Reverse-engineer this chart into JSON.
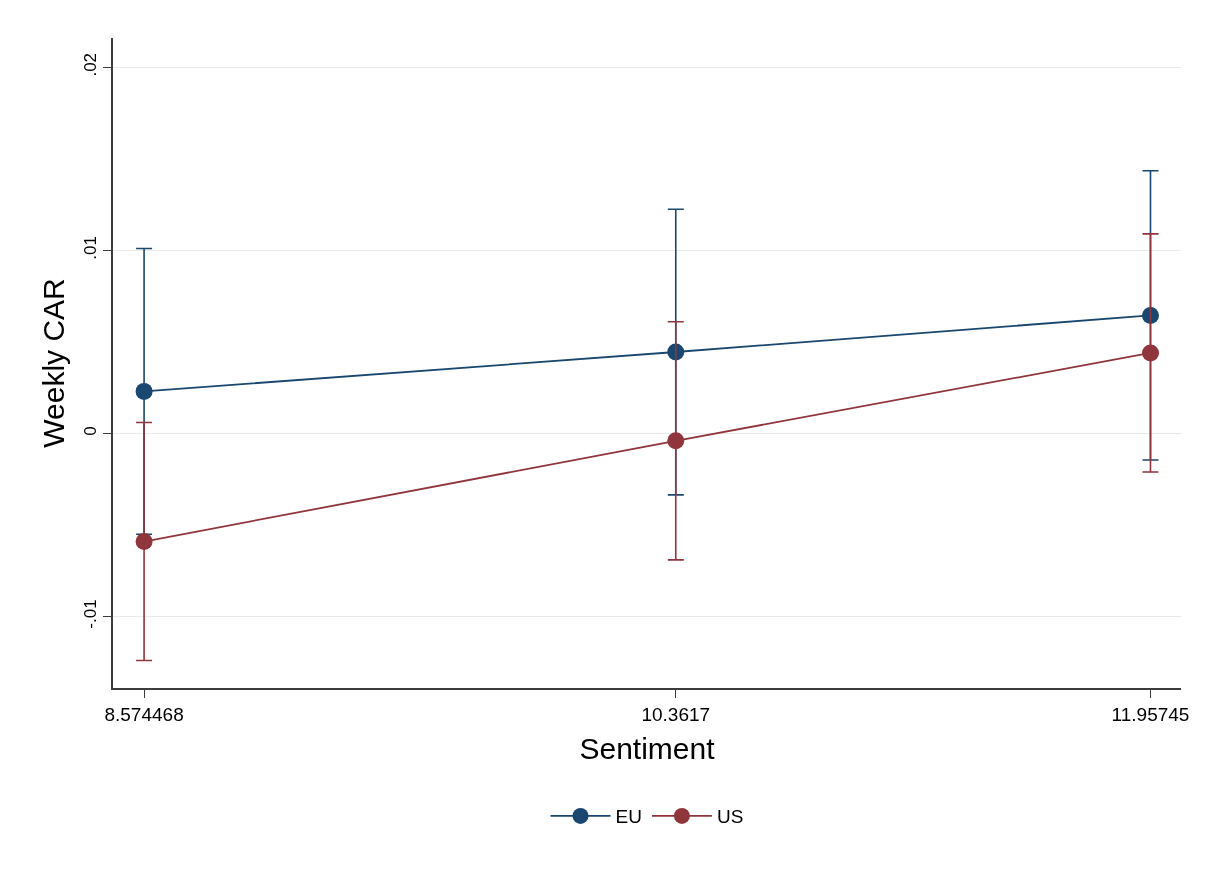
{
  "chart_data": {
    "type": "line",
    "xlabel": "Sentiment",
    "ylabel": "Weekly CAR",
    "x": [
      8.574468,
      10.3617,
      11.95745
    ],
    "series": [
      {
        "name": "EU",
        "color": "#1a476f",
        "values": [
          0.0023,
          0.00445,
          0.00645
        ],
        "errors": [
          0.0078,
          0.0078,
          0.0079
        ]
      },
      {
        "name": "US",
        "color": "#90353b",
        "values": [
          -0.0059,
          -0.0004,
          0.0044
        ],
        "errors": [
          0.0065,
          0.0065,
          0.0065
        ]
      }
    ],
    "xlim": [
      8.47,
      12.06
    ],
    "xticks": [
      8.574468,
      10.3617,
      11.95745
    ],
    "ylim": [
      -0.0139,
      0.0216
    ],
    "yticks": [
      {
        "value": -0.01,
        "label": "-.01"
      },
      0,
      {
        "value": 0.01,
        "label": ".01"
      },
      {
        "value": 0.02,
        "label": ".02"
      }
    ],
    "grid": "y",
    "legend": "bottom",
    "marker": "circle",
    "line_style": "solid"
  }
}
